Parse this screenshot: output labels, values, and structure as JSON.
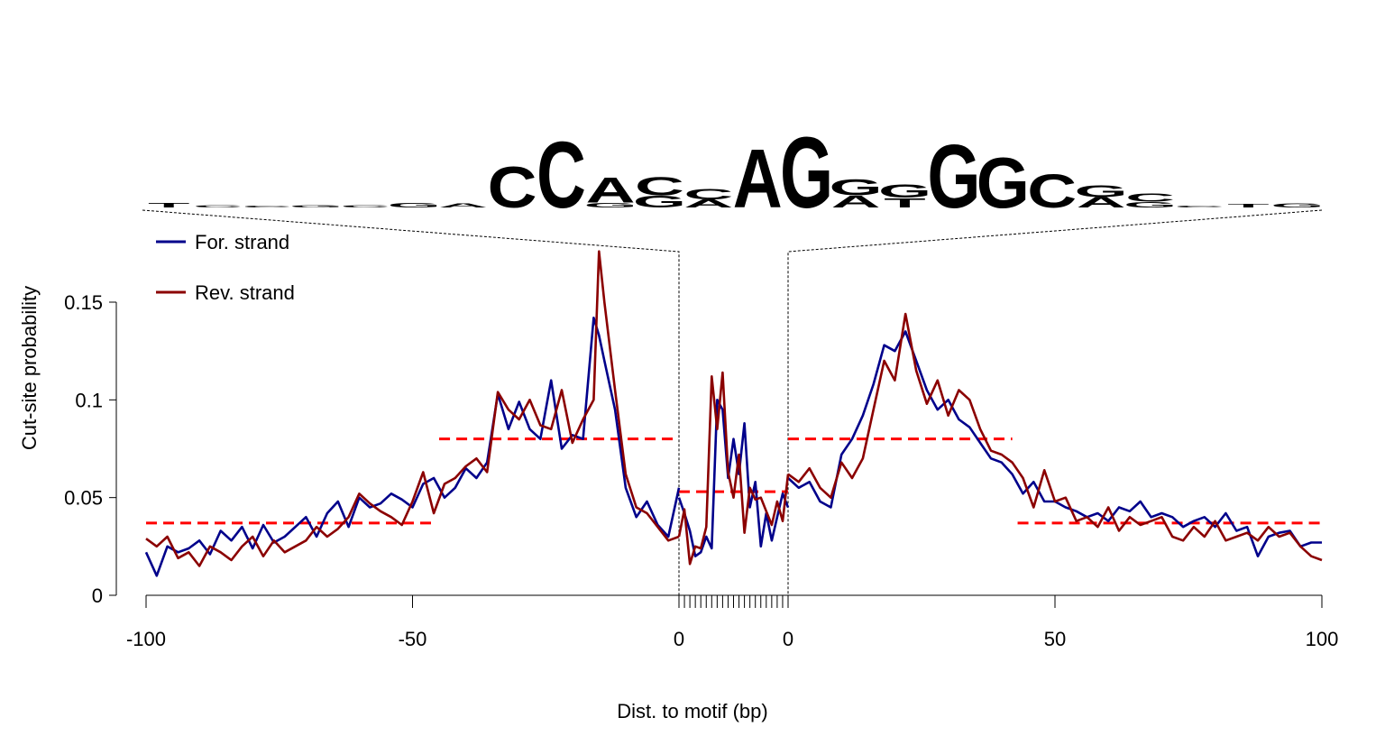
{
  "chart_data": {
    "type": "line",
    "xlabel": "Dist. to motif (bp)",
    "ylabel": "Cut-site probability",
    "ylim": [
      0,
      0.17
    ],
    "y_ticks": [
      {
        "value": 0,
        "label": "0"
      },
      {
        "value": 0.05,
        "label": "0.05"
      },
      {
        "value": 0.1,
        "label": "0.1"
      },
      {
        "value": 0.15,
        "label": "0.15"
      }
    ],
    "x_ticks_left": [
      {
        "value": -100,
        "label": "-100"
      },
      {
        "value": -50,
        "label": "-50"
      },
      {
        "value": 0,
        "label": "0"
      }
    ],
    "x_ticks_right": [
      {
        "value": 0,
        "label": "0"
      },
      {
        "value": 50,
        "label": "50"
      },
      {
        "value": 100,
        "label": "100"
      }
    ],
    "motif_sites": 20,
    "legend_position": "top-left",
    "series": [
      {
        "name": "For. strand",
        "color": "#00008B",
        "left_x": [
          -100,
          -98,
          -96,
          -94,
          -92,
          -90,
          -88,
          -86,
          -84,
          -82,
          -80,
          -78,
          -76,
          -74,
          -72,
          -70,
          -68,
          -66,
          -64,
          -62,
          -60,
          -58,
          -56,
          -54,
          -52,
          -50,
          -48,
          -46,
          -44,
          -42,
          -40,
          -38,
          -36,
          -34,
          -32,
          -30,
          -28,
          -26,
          -24,
          -22,
          -20,
          -18,
          -16,
          -15,
          -14,
          -12,
          -10,
          -8,
          -6,
          -4,
          -2,
          0
        ],
        "left_y": [
          0.022,
          0.01,
          0.025,
          0.022,
          0.024,
          0.028,
          0.021,
          0.033,
          0.028,
          0.035,
          0.024,
          0.036,
          0.027,
          0.03,
          0.035,
          0.04,
          0.03,
          0.042,
          0.048,
          0.035,
          0.05,
          0.045,
          0.047,
          0.052,
          0.049,
          0.045,
          0.057,
          0.06,
          0.05,
          0.055,
          0.065,
          0.06,
          0.068,
          0.103,
          0.085,
          0.099,
          0.085,
          0.08,
          0.11,
          0.075,
          0.082,
          0.08,
          0.142,
          0.133,
          0.12,
          0.095,
          0.055,
          0.04,
          0.048,
          0.036,
          0.03,
          0.055
        ],
        "motif_y": [
          0.05,
          0.042,
          0.033,
          0.02,
          0.022,
          0.03,
          0.024,
          0.1,
          0.095,
          0.06,
          0.08,
          0.062,
          0.088,
          0.045,
          0.058,
          0.025,
          0.042,
          0.028,
          0.04,
          0.052,
          0.045
        ],
        "right_x": [
          0,
          2,
          4,
          6,
          8,
          10,
          12,
          14,
          16,
          18,
          20,
          22,
          24,
          26,
          28,
          30,
          32,
          34,
          36,
          38,
          40,
          42,
          44,
          46,
          48,
          50,
          52,
          54,
          56,
          58,
          60,
          62,
          64,
          66,
          68,
          70,
          72,
          74,
          76,
          78,
          80,
          82,
          84,
          86,
          88,
          90,
          92,
          94,
          96,
          98,
          100
        ],
        "right_y": [
          0.06,
          0.055,
          0.058,
          0.048,
          0.045,
          0.072,
          0.08,
          0.092,
          0.108,
          0.128,
          0.125,
          0.135,
          0.12,
          0.105,
          0.095,
          0.1,
          0.09,
          0.086,
          0.078,
          0.07,
          0.068,
          0.062,
          0.052,
          0.058,
          0.048,
          0.048,
          0.045,
          0.043,
          0.04,
          0.042,
          0.038,
          0.045,
          0.043,
          0.048,
          0.04,
          0.042,
          0.04,
          0.035,
          0.038,
          0.04,
          0.035,
          0.042,
          0.033,
          0.035,
          0.02,
          0.03,
          0.032,
          0.033,
          0.025,
          0.027,
          0.027
        ]
      },
      {
        "name": "Rev. strand",
        "color": "#8B0000",
        "left_x": [
          -100,
          -98,
          -96,
          -94,
          -92,
          -90,
          -88,
          -86,
          -84,
          -82,
          -80,
          -78,
          -76,
          -74,
          -72,
          -70,
          -68,
          -66,
          -64,
          -62,
          -60,
          -58,
          -56,
          -54,
          -52,
          -50,
          -48,
          -46,
          -44,
          -42,
          -40,
          -38,
          -36,
          -34,
          -32,
          -30,
          -28,
          -26,
          -24,
          -22,
          -20,
          -18,
          -16,
          -15,
          -14,
          -12,
          -10,
          -8,
          -6,
          -4,
          -2,
          0
        ],
        "left_y": [
          0.029,
          0.025,
          0.03,
          0.019,
          0.022,
          0.015,
          0.025,
          0.022,
          0.018,
          0.025,
          0.03,
          0.02,
          0.028,
          0.022,
          0.025,
          0.028,
          0.035,
          0.03,
          0.034,
          0.04,
          0.052,
          0.047,
          0.043,
          0.04,
          0.036,
          0.048,
          0.063,
          0.042,
          0.057,
          0.06,
          0.066,
          0.07,
          0.063,
          0.104,
          0.095,
          0.09,
          0.1,
          0.087,
          0.085,
          0.105,
          0.078,
          0.09,
          0.1,
          0.176,
          0.15,
          0.105,
          0.062,
          0.045,
          0.042,
          0.035,
          0.028,
          0.03
        ],
        "motif_y": [
          0.03,
          0.044,
          0.016,
          0.025,
          0.024,
          0.035,
          0.112,
          0.085,
          0.114,
          0.063,
          0.05,
          0.072,
          0.032,
          0.055,
          0.049,
          0.05,
          0.043,
          0.036,
          0.048,
          0.038,
          0.062
        ],
        "right_x": [
          0,
          2,
          4,
          6,
          8,
          10,
          12,
          14,
          16,
          18,
          20,
          22,
          24,
          26,
          28,
          30,
          32,
          34,
          36,
          38,
          40,
          42,
          44,
          46,
          48,
          50,
          52,
          54,
          56,
          58,
          60,
          62,
          64,
          66,
          68,
          70,
          72,
          74,
          76,
          78,
          80,
          82,
          84,
          86,
          88,
          90,
          92,
          94,
          96,
          98,
          100
        ],
        "right_y": [
          0.062,
          0.058,
          0.065,
          0.055,
          0.05,
          0.068,
          0.06,
          0.07,
          0.095,
          0.12,
          0.11,
          0.144,
          0.115,
          0.098,
          0.11,
          0.092,
          0.105,
          0.1,
          0.085,
          0.074,
          0.072,
          0.068,
          0.06,
          0.045,
          0.064,
          0.048,
          0.05,
          0.038,
          0.04,
          0.035,
          0.045,
          0.033,
          0.04,
          0.036,
          0.038,
          0.04,
          0.03,
          0.028,
          0.035,
          0.03,
          0.038,
          0.028,
          0.03,
          0.032,
          0.028,
          0.035,
          0.03,
          0.032,
          0.025,
          0.02,
          0.018
        ]
      }
    ],
    "reference_lines": {
      "color": "#FF0000",
      "segments": [
        {
          "region": "left",
          "from": -100,
          "to": -46,
          "y": 0.037
        },
        {
          "region": "left",
          "from": -45,
          "to": 0,
          "y": 0.08
        },
        {
          "region": "motif",
          "from": 0,
          "to": 20,
          "y": 0.053
        },
        {
          "region": "right",
          "from": 0,
          "to": 42,
          "y": 0.08
        },
        {
          "region": "right",
          "from": 43,
          "to": 100,
          "y": 0.037
        }
      ]
    },
    "motif_logo": {
      "colors": {
        "A": "#008000",
        "C": "#0000CC",
        "G": "#FFA500",
        "T": "#CC0000"
      },
      "columns": [
        [
          [
            "T",
            0.6
          ]
        ],
        [
          [
            "C",
            0.3
          ]
        ],
        [
          [
            "C",
            0.2
          ]
        ],
        [
          [
            "G",
            0.3
          ]
        ],
        [
          [
            "C",
            0.3
          ]
        ],
        [
          [
            "G",
            0.6
          ]
        ],
        [
          [
            "A",
            0.5
          ]
        ],
        [
          [
            "C",
            5.2
          ]
        ],
        [
          [
            "C",
            8.4
          ]
        ],
        [
          [
            "A",
            3.2
          ],
          [
            "G",
            0.6
          ]
        ],
        [
          [
            "C",
            2.3
          ],
          [
            "G",
            1.5
          ]
        ],
        [
          [
            "C",
            1.3
          ],
          [
            "A",
            1.0
          ]
        ],
        [
          [
            "A",
            7.4
          ]
        ],
        [
          [
            "G",
            9.0
          ]
        ],
        [
          [
            "G",
            2.0
          ],
          [
            "A",
            1.5
          ]
        ],
        [
          [
            "G",
            1.7
          ],
          [
            "T",
            1.2
          ]
        ],
        [
          [
            "G",
            8.0
          ]
        ],
        [
          [
            "G",
            6.4
          ]
        ],
        [
          [
            "C",
            4.2
          ]
        ],
        [
          [
            "G",
            1.5
          ],
          [
            "A",
            1.3
          ]
        ],
        [
          [
            "C",
            1.0
          ],
          [
            "G",
            0.7
          ]
        ],
        [
          [
            "C",
            0.2
          ]
        ],
        [
          [
            "T",
            0.4
          ]
        ],
        [
          [
            "G",
            0.5
          ]
        ]
      ]
    },
    "legend": [
      {
        "label": "For. strand",
        "color": "#00008B"
      },
      {
        "label": "Rev. strand",
        "color": "#8B0000"
      }
    ]
  }
}
